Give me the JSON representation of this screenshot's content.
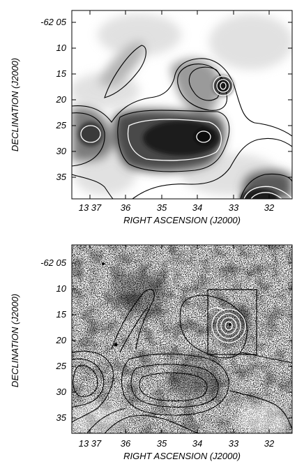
{
  "figure": {
    "panels": [
      {
        "id": "top",
        "kind": "grayscale-contour-map",
        "xlabel": "RIGHT ASCENSION (J2000)",
        "ylabel": "DECLINATION (J2000)",
        "x_ticks": [
          "13 37",
          "36",
          "35",
          "34",
          "33",
          "32"
        ],
        "y_ticks": [
          "-62 05",
          "10",
          "15",
          "20",
          "25",
          "30",
          "35"
        ]
      },
      {
        "id": "bottom",
        "kind": "stippled-optical-image-with-contours",
        "xlabel": "RIGHT ASCENSION (J2000)",
        "ylabel": "DECLINATION (J2000)",
        "x_ticks": [
          "13 37",
          "36",
          "35",
          "34",
          "33",
          "32"
        ],
        "y_ticks": [
          "-62 05",
          "10",
          "15",
          "20",
          "25",
          "30",
          "35"
        ]
      }
    ]
  }
}
